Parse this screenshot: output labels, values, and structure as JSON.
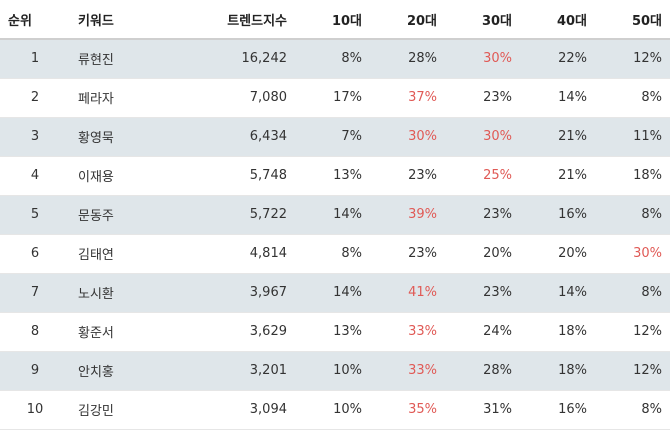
{
  "table": {
    "headers": [
      "순위",
      "키워드",
      "트렌드지수",
      "10대",
      "20대",
      "30대",
      "40대",
      "50대"
    ],
    "highlight_color": "#e05a56",
    "rows": [
      {
        "rank": "1",
        "keyword": "류현진",
        "index": "16,242",
        "a10": "8%",
        "a20": "28%",
        "a30": "30%",
        "a40": "22%",
        "a50": "12%",
        "highlight": [
          "a30"
        ]
      },
      {
        "rank": "2",
        "keyword": "페라자",
        "index": "7,080",
        "a10": "17%",
        "a20": "37%",
        "a30": "23%",
        "a40": "14%",
        "a50": "8%",
        "highlight": [
          "a20"
        ]
      },
      {
        "rank": "3",
        "keyword": "황영묵",
        "index": "6,434",
        "a10": "7%",
        "a20": "30%",
        "a30": "30%",
        "a40": "21%",
        "a50": "11%",
        "highlight": [
          "a20",
          "a30"
        ]
      },
      {
        "rank": "4",
        "keyword": "이재용",
        "index": "5,748",
        "a10": "13%",
        "a20": "23%",
        "a30": "25%",
        "a40": "21%",
        "a50": "18%",
        "highlight": [
          "a30"
        ]
      },
      {
        "rank": "5",
        "keyword": "문동주",
        "index": "5,722",
        "a10": "14%",
        "a20": "39%",
        "a30": "23%",
        "a40": "16%",
        "a50": "8%",
        "highlight": [
          "a20"
        ]
      },
      {
        "rank": "6",
        "keyword": "김태연",
        "index": "4,814",
        "a10": "8%",
        "a20": "23%",
        "a30": "20%",
        "a40": "20%",
        "a50": "30%",
        "highlight": [
          "a50"
        ]
      },
      {
        "rank": "7",
        "keyword": "노시환",
        "index": "3,967",
        "a10": "14%",
        "a20": "41%",
        "a30": "23%",
        "a40": "14%",
        "a50": "8%",
        "highlight": [
          "a20"
        ]
      },
      {
        "rank": "8",
        "keyword": "황준서",
        "index": "3,629",
        "a10": "13%",
        "a20": "33%",
        "a30": "24%",
        "a40": "18%",
        "a50": "12%",
        "highlight": [
          "a20"
        ]
      },
      {
        "rank": "9",
        "keyword": "안치홍",
        "index": "3,201",
        "a10": "10%",
        "a20": "33%",
        "a30": "28%",
        "a40": "18%",
        "a50": "12%",
        "highlight": [
          "a20"
        ]
      },
      {
        "rank": "10",
        "keyword": "김강민",
        "index": "3,094",
        "a10": "10%",
        "a20": "35%",
        "a30": "31%",
        "a40": "16%",
        "a50": "8%",
        "highlight": [
          "a20"
        ]
      }
    ]
  }
}
